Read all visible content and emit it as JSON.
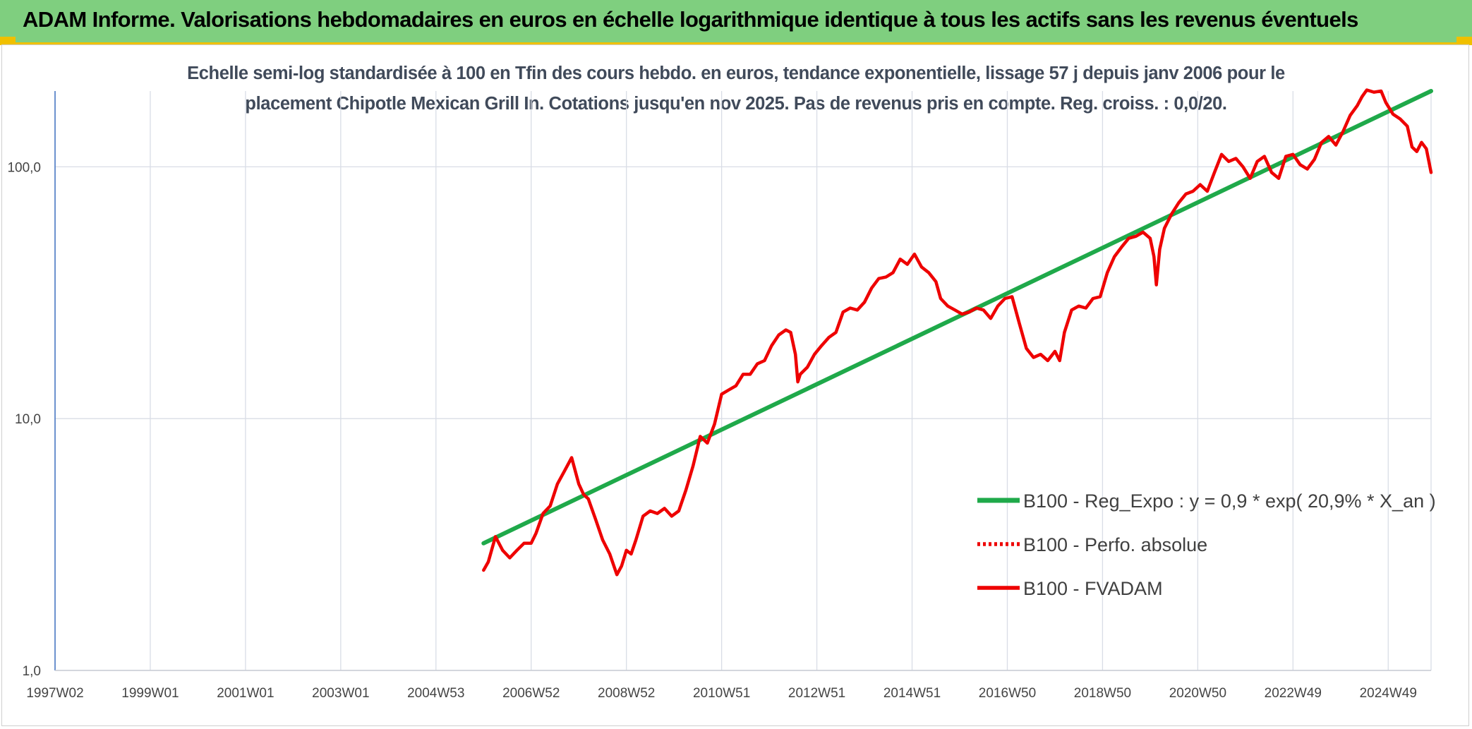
{
  "header": {
    "title": "ADAM Informe. Valorisations hebdomadaires en euros en échelle logarithmique identique à tous les actifs sans les revenus éventuels"
  },
  "colors": {
    "banner": "#7fcf7f",
    "accent": "#f0c000",
    "regression": "#1fa94a",
    "fvadam": "#ee0000",
    "perfo": "#ee0000",
    "grid": "#d9dde6",
    "y_axis": "#4a78c4"
  },
  "chart_data": {
    "type": "line",
    "title_line1": "Echelle semi-log standardisée à 100 en Tfin des cours hebdo. en euros, tendance exponentielle, lissage 57 j depuis janv 2006 pour le",
    "title_line2": "placement Chipotle Mexican Grill In. Cotations jusqu'en nov 2025. Pas de revenus pris en compte. Reg. croiss. : 0,0/20.",
    "y_scale": "log",
    "ylim": [
      1,
      200
    ],
    "y_ticks": [
      {
        "value": 1,
        "label": "1,0"
      },
      {
        "value": 10,
        "label": "10,0"
      },
      {
        "value": 100,
        "label": "100,0"
      }
    ],
    "xlim": [
      1997.0,
      2025.9
    ],
    "x_ticks": [
      {
        "value": 1997.0,
        "label": "1997W02"
      },
      {
        "value": 1999.0,
        "label": "1999W01"
      },
      {
        "value": 2001.0,
        "label": "2001W01"
      },
      {
        "value": 2003.0,
        "label": "2003W01"
      },
      {
        "value": 2005.0,
        "label": "2004W53"
      },
      {
        "value": 2007.0,
        "label": "2006W52"
      },
      {
        "value": 2009.0,
        "label": "2008W52"
      },
      {
        "value": 2011.0,
        "label": "2010W51"
      },
      {
        "value": 2013.0,
        "label": "2012W51"
      },
      {
        "value": 2015.0,
        "label": "2014W51"
      },
      {
        "value": 2017.0,
        "label": "2016W50"
      },
      {
        "value": 2019.0,
        "label": "2018W50"
      },
      {
        "value": 2021.0,
        "label": "2020W50"
      },
      {
        "value": 2023.0,
        "label": "2022W49"
      },
      {
        "value": 2025.0,
        "label": "2024W49"
      }
    ],
    "grid": true,
    "legend_position": "right",
    "series": [
      {
        "name": "B100 - Reg_Expo : y = 0,9 * exp( 20,9% *  X_an )",
        "style": "solid-green",
        "x": [
          2006.0,
          2025.9
        ],
        "y": [
          3.2,
          200
        ]
      },
      {
        "name": "B100 - Perfo. absolue",
        "style": "dotted-red",
        "x": [],
        "y": []
      },
      {
        "name": "B100 - FVADAM",
        "style": "solid-red",
        "x": [
          2006.0,
          2006.1,
          2006.25,
          2006.4,
          2006.55,
          2006.7,
          2006.85,
          2007.0,
          2007.1,
          2007.25,
          2007.4,
          2007.55,
          2007.7,
          2007.85,
          2008.0,
          2008.1,
          2008.2,
          2008.35,
          2008.5,
          2008.65,
          2008.8,
          2008.9,
          2009.0,
          2009.1,
          2009.2,
          2009.35,
          2009.5,
          2009.65,
          2009.8,
          2009.95,
          2010.1,
          2010.25,
          2010.4,
          2010.55,
          2010.7,
          2010.85,
          2011.0,
          2011.15,
          2011.3,
          2011.45,
          2011.6,
          2011.75,
          2011.9,
          2012.05,
          2012.2,
          2012.35,
          2012.45,
          2012.55,
          2012.6,
          2012.65,
          2012.8,
          2012.95,
          2013.1,
          2013.25,
          2013.4,
          2013.55,
          2013.7,
          2013.85,
          2014.0,
          2014.15,
          2014.3,
          2014.45,
          2014.6,
          2014.75,
          2014.9,
          2015.05,
          2015.2,
          2015.35,
          2015.5,
          2015.6,
          2015.75,
          2015.9,
          2016.05,
          2016.2,
          2016.35,
          2016.5,
          2016.65,
          2016.8,
          2016.95,
          2017.1,
          2017.25,
          2017.4,
          2017.55,
          2017.7,
          2017.85,
          2018.0,
          2018.1,
          2018.2,
          2018.35,
          2018.5,
          2018.65,
          2018.8,
          2018.95,
          2019.1,
          2019.25,
          2019.4,
          2019.55,
          2019.7,
          2019.85,
          2020.0,
          2020.08,
          2020.13,
          2020.2,
          2020.3,
          2020.45,
          2020.6,
          2020.75,
          2020.9,
          2021.05,
          2021.2,
          2021.35,
          2021.5,
          2021.65,
          2021.8,
          2021.95,
          2022.1,
          2022.25,
          2022.4,
          2022.55,
          2022.7,
          2022.85,
          2023.0,
          2023.15,
          2023.3,
          2023.45,
          2023.6,
          2023.75,
          2023.9,
          2024.05,
          2024.2,
          2024.35,
          2024.45,
          2024.55,
          2024.7,
          2024.85,
          2024.95,
          2025.1,
          2025.25,
          2025.4,
          2025.5,
          2025.6,
          2025.7,
          2025.8,
          2025.9
        ],
        "y": [
          2.5,
          2.7,
          3.4,
          3.0,
          2.8,
          3.0,
          3.2,
          3.2,
          3.5,
          4.2,
          4.5,
          5.5,
          6.2,
          7.0,
          5.5,
          5.0,
          4.8,
          4.0,
          3.3,
          2.9,
          2.4,
          2.6,
          3.0,
          2.9,
          3.3,
          4.1,
          4.3,
          4.2,
          4.4,
          4.1,
          4.3,
          5.2,
          6.5,
          8.5,
          8.0,
          9.5,
          12.5,
          13.0,
          13.5,
          15.0,
          15.0,
          16.5,
          17.0,
          19.5,
          21.5,
          22.5,
          22.0,
          18.0,
          14.0,
          15.0,
          16.0,
          18.0,
          19.5,
          21.0,
          22.0,
          26.5,
          27.5,
          27.0,
          29.0,
          33.0,
          36.0,
          36.5,
          38.0,
          43.0,
          41.0,
          45.0,
          40.0,
          38.0,
          35.0,
          30.0,
          28.0,
          27.0,
          26.0,
          26.5,
          27.5,
          27.0,
          25.0,
          28.0,
          30.0,
          30.5,
          24.0,
          19.0,
          17.5,
          18.0,
          17.0,
          18.5,
          17.0,
          22.0,
          27.0,
          28.0,
          27.5,
          30.0,
          30.5,
          38.0,
          44.0,
          48.0,
          52.0,
          53.0,
          55.0,
          52.0,
          44.0,
          34.0,
          47.0,
          57.0,
          65.0,
          72.0,
          78.0,
          80.0,
          85.0,
          80.0,
          95.0,
          112.0,
          105.0,
          108.0,
          100.0,
          90.0,
          105.0,
          110.0,
          95.0,
          90.0,
          110.0,
          112.0,
          102.0,
          98.0,
          107.0,
          125.0,
          132.0,
          122.0,
          138.0,
          160.0,
          175.0,
          190.0,
          202.0,
          198.0,
          200.0,
          180.0,
          162.0,
          155.0,
          145.0,
          120.0,
          115.0,
          125.0,
          118.0,
          95.0
        ]
      }
    ]
  }
}
